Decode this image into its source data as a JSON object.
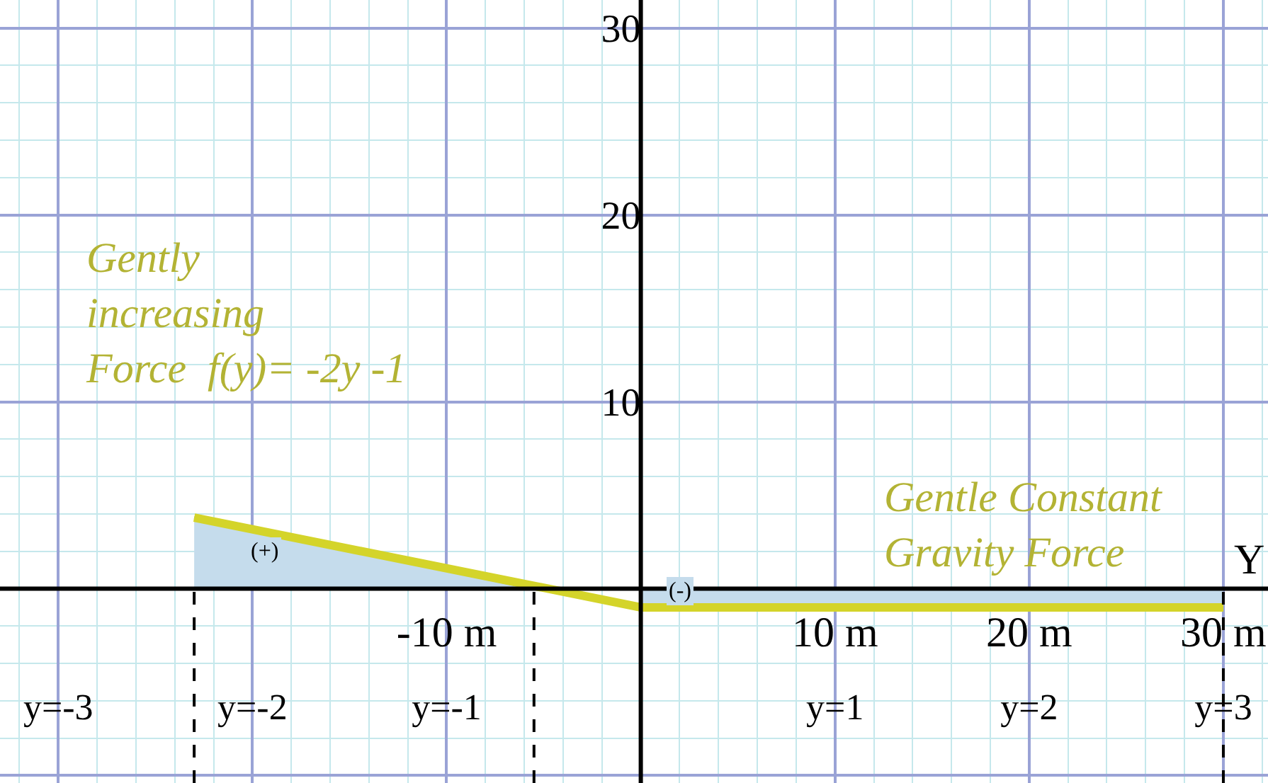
{
  "chart_data": {
    "type": "line",
    "xlabel": "Y",
    "xlim": [
      -33,
      32.3
    ],
    "ylim": [
      -10.4,
      31.5
    ],
    "xticks": [
      {
        "value": -30,
        "label": null
      },
      {
        "value": -20,
        "label": null
      },
      {
        "value": -10,
        "label": "-10 m"
      },
      {
        "value": 0,
        "label": null
      },
      {
        "value": 10,
        "label": "10 m"
      },
      {
        "value": 20,
        "label": "20 m"
      },
      {
        "value": 30,
        "label": "30 m"
      }
    ],
    "yticks": [
      {
        "value": -10,
        "label": null
      },
      {
        "value": 0,
        "label": null
      },
      10,
      20,
      30
    ],
    "x2lim": [
      -3.3,
      3.23
    ],
    "x2ticks": [
      {
        "value": -3,
        "label": "y=-3"
      },
      {
        "value": -2,
        "label": "y=-2"
      },
      {
        "value": -1,
        "label": "y=-1"
      },
      {
        "value": 1,
        "label": "y=1"
      },
      {
        "value": 2,
        "label": "y=2"
      },
      {
        "value": 3,
        "label": "y=3"
      }
    ],
    "grid": true,
    "marker": "none",
    "line_style": "solid",
    "series": [
      {
        "type": "area",
        "color": "#c5dcec",
        "x": [
          -23,
          -5.5
        ],
        "values": [
          3.8,
          0
        ]
      },
      {
        "type": "area",
        "color": "#c5dcec",
        "x": [
          0,
          30
        ],
        "values": [
          -1,
          -1
        ]
      },
      {
        "color": "#d4d42a",
        "x": [
          -23,
          0,
          30
        ],
        "values": [
          3.8,
          -1,
          -1
        ]
      }
    ],
    "ref_lines": [
      {
        "axis": "x",
        "value": -23,
        "color": "#000000",
        "line_style": "dashed"
      },
      {
        "axis": "x",
        "value": -5.5,
        "color": "#000000",
        "line_style": "dashed"
      },
      {
        "axis": "x",
        "value": 30,
        "color": "#000000",
        "line_style": "dashed"
      }
    ],
    "annotations": [
      "Gently\nincreasing\nForce  f(y)= -2y -1",
      "Gentle Constant\nGravity Force",
      "(+)",
      "(-)"
    ]
  }
}
